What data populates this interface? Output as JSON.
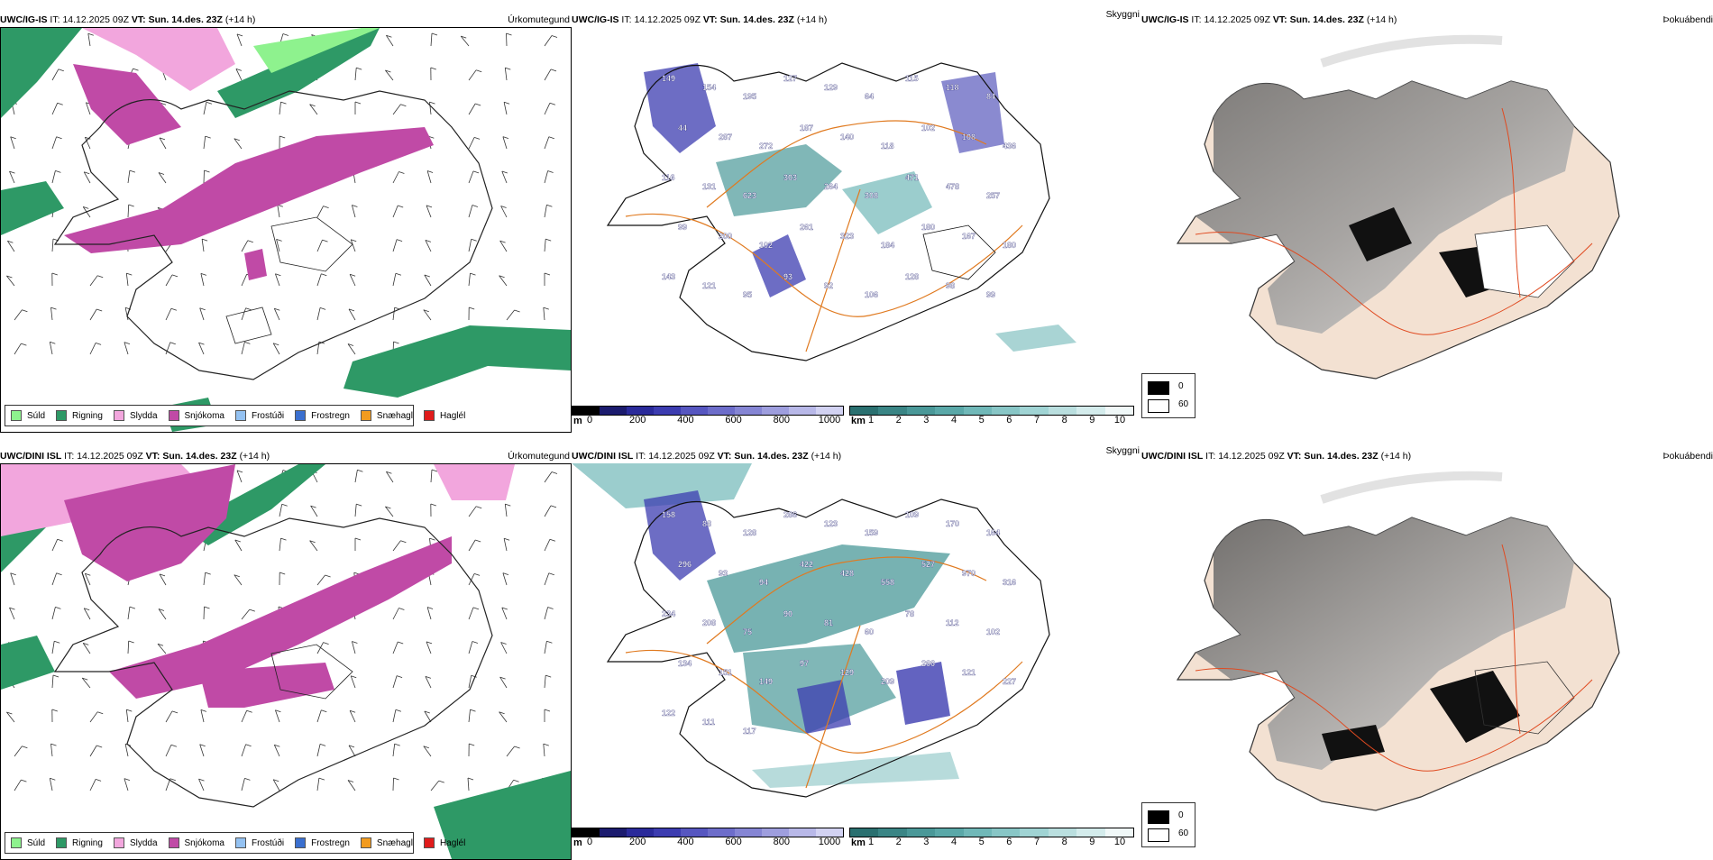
{
  "rows": [
    {
      "model": "UWC/IG-IS",
      "it_label": "IT:",
      "it_value": "14.12.2025 09Z",
      "vt_label": "VT:",
      "vt_value": "Sun. 14.des. 23Z",
      "lead": "(+14 h)",
      "precip_title": "Úrkomutegund",
      "ceiling_title": "Skyggni",
      "fog_title": "Þokuábendi",
      "numbers": [
        "149",
        "154",
        "195",
        "127",
        "129",
        "64",
        "115",
        "118",
        "84",
        "44",
        "287",
        "272",
        "187",
        "140",
        "118",
        "102",
        "108",
        "436",
        "116",
        "131",
        "623",
        "303",
        "264",
        "308",
        "471",
        "478",
        "257",
        "99",
        "200",
        "102",
        "261",
        "323",
        "184",
        "180",
        "167",
        "180",
        "143",
        "121",
        "95",
        "93",
        "92",
        "106",
        "128",
        "98",
        "99"
      ]
    },
    {
      "model": "UWC/DINI ISL",
      "it_label": "IT:",
      "it_value": "14.12.2025 09Z",
      "vt_label": "VT:",
      "vt_value": "Sun. 14.des. 23Z",
      "lead": "(+14 h)",
      "precip_title": "Úrkomutegund",
      "ceiling_title": "Skyggni",
      "fog_title": "Þokuábendi",
      "numbers": [
        "158",
        "88",
        "128",
        "286",
        "123",
        "159",
        "109",
        "170",
        "164",
        "296",
        "93",
        "94",
        "422",
        "428",
        "558",
        "527",
        "970",
        "316",
        "234",
        "208",
        "75",
        "90",
        "81",
        "60",
        "78",
        "112",
        "102",
        "134",
        "151",
        "149",
        "97",
        "129",
        "209",
        "266",
        "121",
        "227",
        "122",
        "111",
        "117"
      ]
    }
  ],
  "precip_legend": [
    {
      "label": "Súld",
      "color": "#8ef28e"
    },
    {
      "label": "Rigning",
      "color": "#2e9966"
    },
    {
      "label": "Slydda",
      "color": "#f2a6dd"
    },
    {
      "label": "Snjókoma",
      "color": "#c04aa6"
    },
    {
      "label": "Frostúði",
      "color": "#94c2f2"
    },
    {
      "label": "Frostregn",
      "color": "#3a6fcf"
    },
    {
      "label": "Snæhagl",
      "color": "#f29b1f"
    },
    {
      "label": "Haglél",
      "color": "#e01b1b"
    }
  ],
  "ceiling_bar": {
    "unit": "m",
    "ticks": [
      "0",
      "200",
      "400",
      "600",
      "800",
      "1000"
    ],
    "colors": [
      "#000000",
      "#1b1b6e",
      "#2a2a9a",
      "#3c3cb0",
      "#5656c0",
      "#6d6dca",
      "#8585d4",
      "#9e9ede",
      "#b8b8e8",
      "#d2d2f2"
    ]
  },
  "visibility_bar": {
    "unit": "km",
    "ticks": [
      "1",
      "2",
      "3",
      "4",
      "5",
      "6",
      "7",
      "8",
      "9",
      "10"
    ],
    "colors": [
      "#2a7070",
      "#3a8585",
      "#4a9898",
      "#5aa8a8",
      "#70b8b8",
      "#88c6c6",
      "#a0d4d4",
      "#badfdf",
      "#d4ecec",
      "#f0f8f8"
    ]
  },
  "fog_legend": [
    {
      "label": "0",
      "color": "#000000"
    },
    {
      "label": "60",
      "color": "#ffffff"
    }
  ],
  "colors": {
    "rain": "#2e9966",
    "snow": "#c04aa6",
    "sleet": "#f2a6dd",
    "drizzle": "#8ef28e",
    "vis": "#4a9898",
    "ceil": "#3c3cb0",
    "road": "#e07a20",
    "land_fog": "#f3e1d2"
  }
}
